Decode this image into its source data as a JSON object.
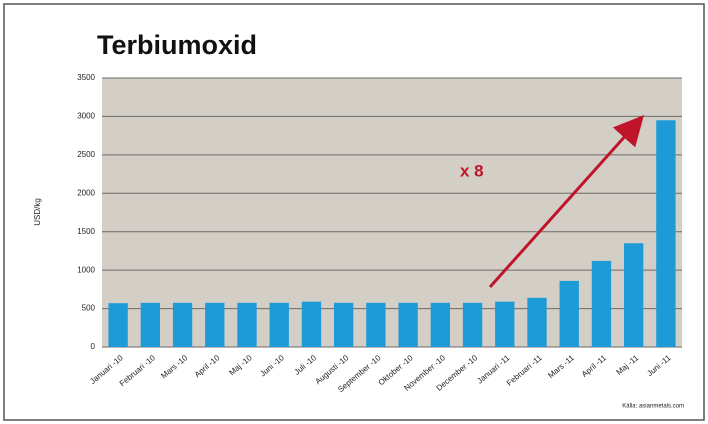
{
  "chart_data": {
    "type": "bar",
    "title": "Terbiumoxid",
    "y_label": "USD/kg",
    "annotation": "x 8",
    "source": "Källa: asianmetals.com",
    "categories": [
      "Januari -10",
      "Februari -10",
      "Mars -10",
      "April -10",
      "Maj -10",
      "Juni -10",
      "Juli -10",
      "Augusti -10",
      "September -10",
      "Oktober -10",
      "November -10",
      "December -10",
      "Januari -11",
      "Februari -11",
      "Mars -11",
      "April -11",
      "Maj -11",
      "Juni -11"
    ],
    "values": [
      570,
      575,
      575,
      575,
      575,
      575,
      590,
      575,
      575,
      575,
      575,
      575,
      590,
      640,
      860,
      1120,
      1350,
      2950
    ],
    "color": "#1e9bd7",
    "ylim": [
      0,
      3500
    ],
    "yticks": [
      0,
      500,
      1000,
      1500,
      2000,
      2500,
      3000,
      3500
    ],
    "grid": true
  }
}
